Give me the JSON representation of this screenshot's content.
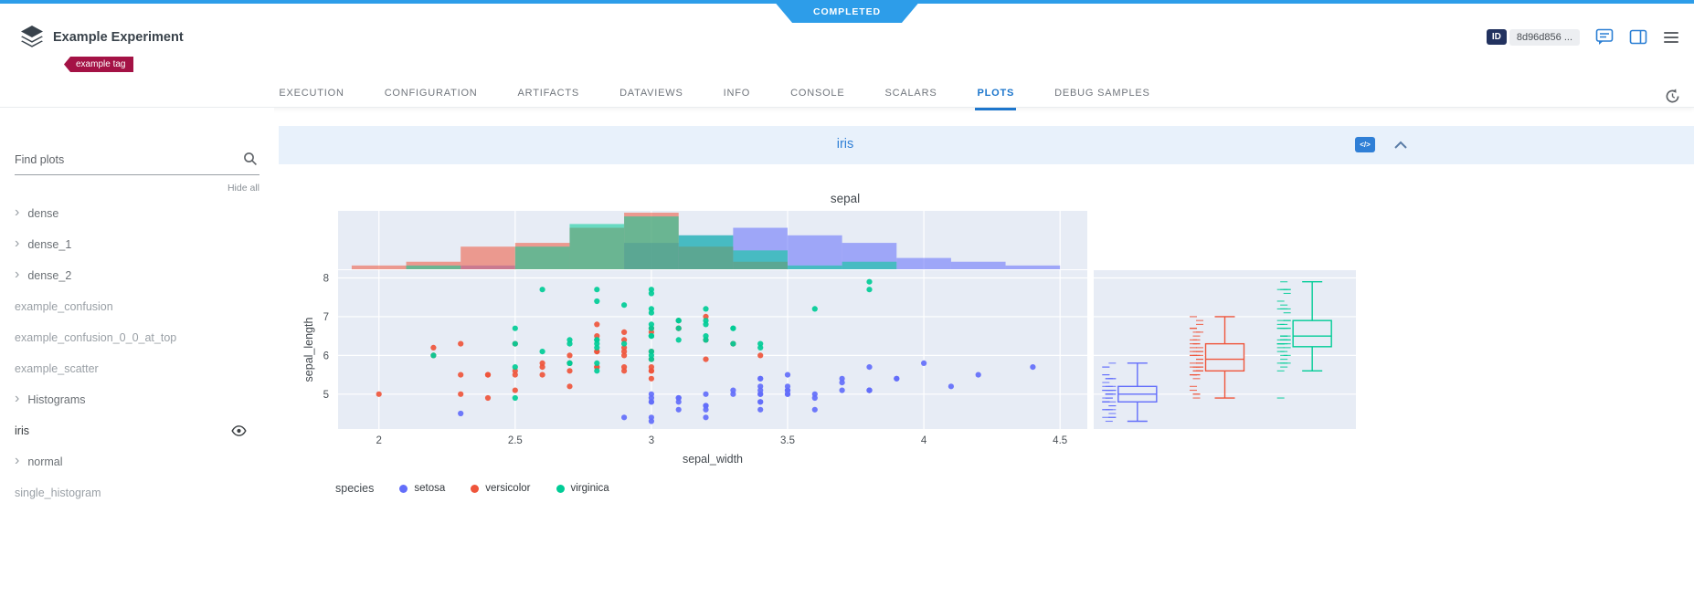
{
  "status": {
    "label": "COMPLETED",
    "color": "#2d9de9"
  },
  "header": {
    "title": "Example Experiment",
    "tag": "example tag",
    "tag_color": "#a41245",
    "id_label": "ID",
    "id_value": "8d96d856 ..."
  },
  "tabs": {
    "items": [
      "EXECUTION",
      "CONFIGURATION",
      "ARTIFACTS",
      "DATAVIEWS",
      "INFO",
      "CONSOLE",
      "SCALARS",
      "PLOTS",
      "DEBUG SAMPLES"
    ],
    "active": "PLOTS",
    "active_color": "#1d76cc"
  },
  "sidebar": {
    "search_placeholder": "Find plots",
    "hide_all": "Hide all",
    "items": [
      {
        "label": "dense",
        "type": "group"
      },
      {
        "label": "dense_1",
        "type": "group"
      },
      {
        "label": "dense_2",
        "type": "group"
      },
      {
        "label": "example_confusion",
        "type": "plot"
      },
      {
        "label": "example_confusion_0_0_at_top",
        "type": "plot"
      },
      {
        "label": "example_scatter",
        "type": "plot"
      },
      {
        "label": "Histograms",
        "type": "group"
      },
      {
        "label": "iris",
        "type": "plot",
        "selected": true,
        "eye": true
      },
      {
        "label": "normal",
        "type": "group"
      },
      {
        "label": "single_histogram",
        "type": "plot"
      }
    ]
  },
  "panel": {
    "title": "iris",
    "title_color": "#2f7fd6"
  },
  "chart_data": {
    "type": "scatter",
    "title": "sepal",
    "xlabel": "sepal_width",
    "ylabel": "sepal_length",
    "xticks": [
      2,
      2.5,
      3,
      3.5,
      4,
      4.5
    ],
    "yticks": [
      5,
      6,
      7,
      8
    ],
    "xlim": [
      1.85,
      4.6
    ],
    "ylim": [
      4.1,
      8.2
    ],
    "legend_title": "species",
    "marginals": {
      "top": "histogram",
      "right": "box"
    },
    "panel_bg": "#e7ecf5",
    "series": [
      {
        "name": "setosa",
        "color": "#636efa",
        "x": [
          3.5,
          3.0,
          3.2,
          3.1,
          3.6,
          3.9,
          3.4,
          3.4,
          2.9,
          3.1,
          3.7,
          3.4,
          3.0,
          3.0,
          4.0,
          4.4,
          3.9,
          3.5,
          3.8,
          3.8,
          3.4,
          3.7,
          3.6,
          3.3,
          3.4,
          3.0,
          3.4,
          3.5,
          3.4,
          3.2,
          3.1,
          3.4,
          4.1,
          4.2,
          3.1,
          3.2,
          3.5,
          3.6,
          3.0,
          3.4,
          3.5,
          2.3,
          3.2,
          3.5,
          3.8,
          3.0,
          3.8,
          3.2,
          3.7,
          3.3
        ],
        "y": [
          5.1,
          4.9,
          4.7,
          4.6,
          5.0,
          5.4,
          4.6,
          5.0,
          4.4,
          4.9,
          5.4,
          4.8,
          4.8,
          4.3,
          5.8,
          5.7,
          5.4,
          5.1,
          5.7,
          5.1,
          5.4,
          5.1,
          4.6,
          5.1,
          4.8,
          5.0,
          5.0,
          5.2,
          5.2,
          4.7,
          4.8,
          5.4,
          5.2,
          5.5,
          4.9,
          5.0,
          5.5,
          4.9,
          4.4,
          5.1,
          5.0,
          4.5,
          4.4,
          5.0,
          5.1,
          4.8,
          5.1,
          4.6,
          5.3,
          5.0
        ]
      },
      {
        "name": "versicolor",
        "color": "#ef553b",
        "x": [
          3.2,
          3.2,
          3.1,
          2.3,
          2.8,
          2.8,
          3.3,
          2.4,
          2.9,
          2.7,
          2.0,
          3.0,
          2.2,
          2.9,
          2.9,
          3.1,
          3.0,
          2.7,
          2.2,
          2.5,
          3.2,
          2.8,
          2.5,
          2.8,
          2.9,
          3.0,
          2.8,
          3.0,
          2.9,
          2.6,
          2.4,
          2.4,
          2.7,
          2.7,
          3.0,
          3.4,
          3.1,
          2.3,
          3.0,
          2.5,
          2.6,
          3.0,
          2.6,
          2.3,
          2.7,
          3.0,
          2.9,
          2.9,
          2.5,
          2.8
        ],
        "y": [
          7.0,
          6.4,
          6.9,
          5.5,
          6.5,
          5.7,
          6.3,
          4.9,
          6.6,
          5.2,
          5.0,
          5.9,
          6.0,
          6.1,
          5.6,
          6.7,
          5.6,
          5.8,
          6.2,
          5.6,
          5.9,
          6.1,
          6.3,
          6.1,
          6.4,
          6.6,
          6.8,
          6.7,
          6.0,
          5.7,
          5.5,
          5.5,
          5.8,
          6.0,
          5.4,
          6.0,
          6.7,
          6.3,
          5.6,
          5.5,
          5.5,
          6.1,
          5.8,
          5.0,
          5.6,
          5.7,
          5.7,
          6.2,
          5.1,
          5.7
        ]
      },
      {
        "name": "virginica",
        "color": "#00cc96",
        "x": [
          3.3,
          2.7,
          3.0,
          2.9,
          3.0,
          3.0,
          2.5,
          2.9,
          2.5,
          3.6,
          3.2,
          2.7,
          3.0,
          2.5,
          2.8,
          3.2,
          3.0,
          3.8,
          2.6,
          2.2,
          3.2,
          2.8,
          2.8,
          2.7,
          3.3,
          3.2,
          2.8,
          3.0,
          2.8,
          3.0,
          2.8,
          3.8,
          2.8,
          2.8,
          2.6,
          3.0,
          3.4,
          3.1,
          3.0,
          3.1,
          3.1,
          3.1,
          2.7,
          3.2,
          3.3,
          3.0,
          2.5,
          3.0,
          3.4,
          3.0
        ],
        "y": [
          6.3,
          5.8,
          7.1,
          6.3,
          6.5,
          7.6,
          4.9,
          7.3,
          6.7,
          7.2,
          6.5,
          6.4,
          6.8,
          5.7,
          5.8,
          6.4,
          6.5,
          7.7,
          7.7,
          6.0,
          6.9,
          5.6,
          7.7,
          6.3,
          6.7,
          7.2,
          6.2,
          6.1,
          6.4,
          7.2,
          7.4,
          7.9,
          6.4,
          6.3,
          6.1,
          7.7,
          6.3,
          6.4,
          6.0,
          6.9,
          6.7,
          6.9,
          5.8,
          6.8,
          6.7,
          6.7,
          6.3,
          6.5,
          6.2,
          5.9
        ]
      }
    ]
  }
}
